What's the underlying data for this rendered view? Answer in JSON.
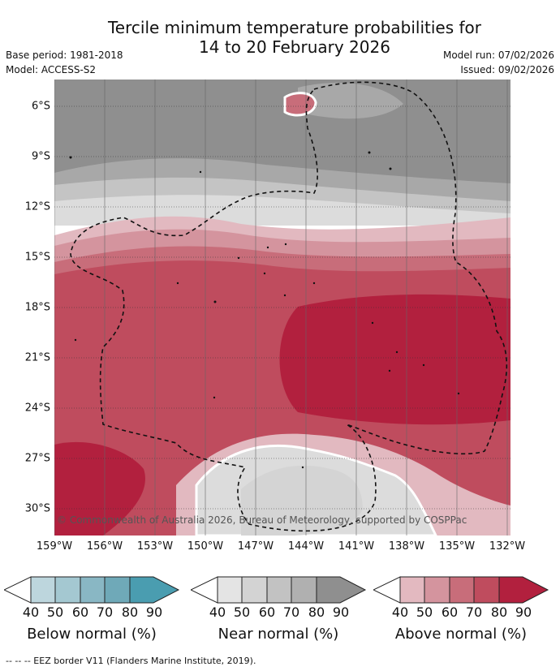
{
  "title_line1": "Tercile minimum temperature probabilities for",
  "title_line2": "14 to 20 February 2026",
  "base_period": "Base period: 1981-2018",
  "model": "Model: ACCESS-S2",
  "model_run": "Model run: 07/02/2026",
  "issued": "Issued: 09/02/2026",
  "copyright": "© Commonwealth of Australia 2026, Bureau of Meteorology, supported by COSPPac",
  "footer": "-- -- -- EEZ border V11 (Flanders Marine Institute, 2019).",
  "lat_labels": [
    "6°S",
    "9°S",
    "12°S",
    "15°S",
    "18°S",
    "21°S",
    "24°S",
    "27°S",
    "30°S"
  ],
  "lon_labels": [
    "159°W",
    "156°W",
    "153°W",
    "150°W",
    "147°W",
    "144°W",
    "141°W",
    "138°W",
    "135°W",
    "132°W"
  ],
  "colorbars": [
    {
      "title": "Below normal (%)",
      "ticks": [
        "40",
        "50",
        "60",
        "70",
        "80",
        "90"
      ],
      "colors": [
        "#ffffff",
        "#bdd6dd",
        "#a4c8d1",
        "#89b7c4",
        "#6fa9b8",
        "#4a9db0"
      ]
    },
    {
      "title": "Near normal (%)",
      "ticks": [
        "40",
        "50",
        "60",
        "70",
        "80",
        "90"
      ],
      "colors": [
        "#ffffff",
        "#e4e4e4",
        "#d3d3d3",
        "#c2c2c2",
        "#b0b0b0",
        "#8f8f8f"
      ]
    },
    {
      "title": "Above normal (%)",
      "ticks": [
        "40",
        "50",
        "60",
        "70",
        "80",
        "90"
      ],
      "colors": [
        "#ffffff",
        "#e3b9c0",
        "#d4949e",
        "#c86d7a",
        "#bf4c5e",
        "#b2203e"
      ]
    }
  ],
  "map_colors": {
    "near80": "#8f8f8f",
    "near70": "#a8a8a8",
    "near60": "#c4c4c4",
    "near50": "#dcdcdc",
    "above50": "#e2b9c0",
    "above60": "#d4949e",
    "above70": "#c86d7a",
    "above80": "#bf4c5e",
    "above90": "#b2203e"
  }
}
